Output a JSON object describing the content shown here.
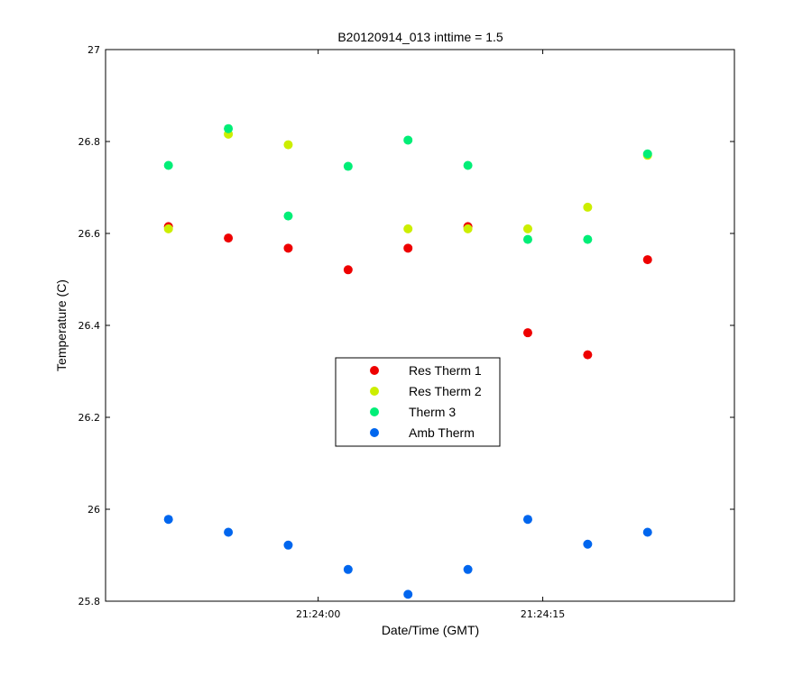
{
  "chart_data": {
    "type": "scatter",
    "title": "B20120914_013 inttime = 1.5",
    "xlabel": "Date/Time (GMT)",
    "ylabel": "Temperature (C)",
    "ylim": [
      25.8,
      27
    ],
    "xlim": [
      "21:23:45.8",
      "21:24:27.8"
    ],
    "yticks": [
      "25.8",
      "26",
      "26.2",
      "26.4",
      "26.6",
      "26.8",
      "27"
    ],
    "xticks": [
      "21:24:00",
      "21:24:15"
    ],
    "x": [
      "21:23:50",
      "21:23:54",
      "21:23:58",
      "21:24:02",
      "21:24:06",
      "21:24:10",
      "21:24:14",
      "21:24:18",
      "21:24:22"
    ],
    "legend_position": "center",
    "grid": false,
    "series": [
      {
        "name": "Res Therm 1",
        "color": "#ee0000",
        "values": [
          26.615,
          26.59,
          26.568,
          26.521,
          26.568,
          26.615,
          26.384,
          26.336,
          26.543
        ]
      },
      {
        "name": "Res Therm 2",
        "color": "#ccee00",
        "values": [
          26.61,
          26.816,
          26.793,
          null,
          26.61,
          26.61,
          26.61,
          26.657,
          26.77
        ]
      },
      {
        "name": "Therm 3",
        "color": "#00ee77",
        "values": [
          26.748,
          26.828,
          26.638,
          26.746,
          26.803,
          26.748,
          26.587,
          26.587,
          26.773
        ]
      },
      {
        "name": "Amb Therm",
        "color": "#0066ee",
        "values": [
          25.978,
          25.95,
          25.922,
          25.869,
          25.815,
          25.869,
          25.978,
          25.924,
          25.95
        ]
      }
    ]
  }
}
